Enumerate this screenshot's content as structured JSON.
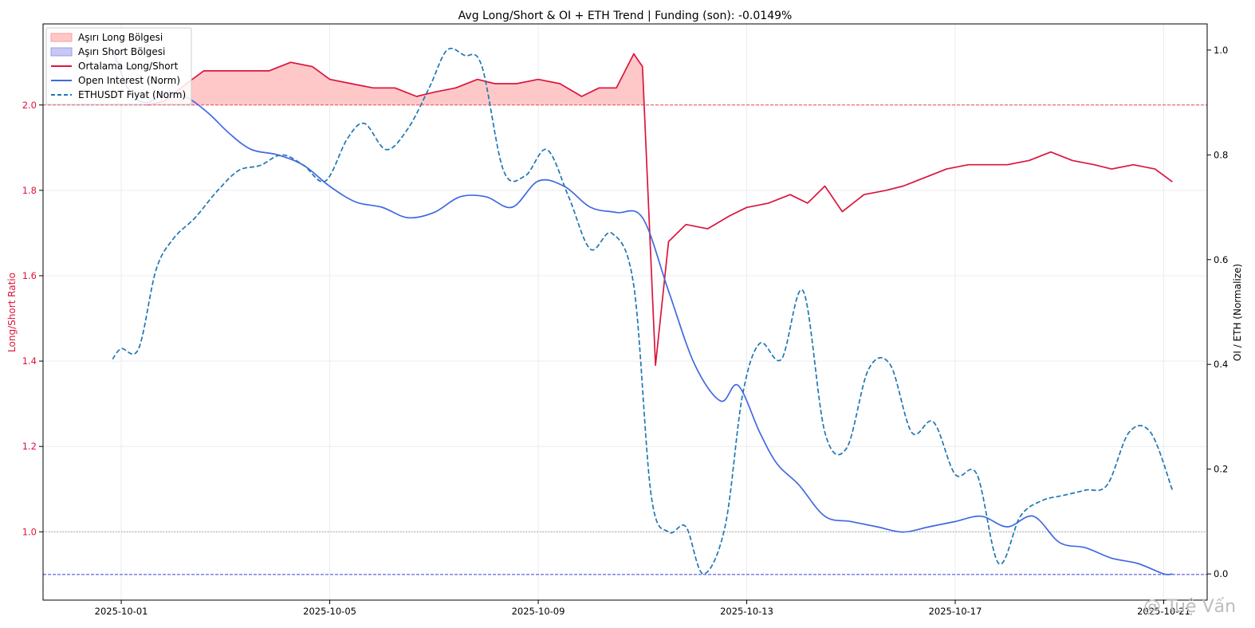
{
  "chart_data": {
    "type": "line",
    "title": "Avg Long/Short & OI + ETH Trend | Funding (son): -0.0149%",
    "ylabel_left": "Long/Short Ratio",
    "ylabel_right": "OI / ETH (Normalize)",
    "xlabel": "",
    "x_start": "2025-09-30T20:00",
    "x_end": "2025-10-21T04:00",
    "xlim": [
      "2025-09-29T12:00",
      "2025-10-21T20:00"
    ],
    "x_ticks": [
      "2025-10-01",
      "2025-10-05",
      "2025-10-09",
      "2025-10-13",
      "2025-10-17",
      "2025-10-21"
    ],
    "ylim_left": [
      0.84,
      2.19
    ],
    "ylim_right": [
      -0.05,
      1.05
    ],
    "y_ticks_left": [
      "1.0",
      "1.2",
      "1.4",
      "1.6",
      "1.8",
      "2.0"
    ],
    "y_ticks_right": [
      "0.0",
      "0.2",
      "0.4",
      "0.6",
      "0.8",
      "1.0"
    ],
    "grid": true,
    "legend_position": "top-left",
    "colors": {
      "long_short": "#dc143c",
      "open_interest": "#4169e1",
      "eth_price": "#1f77b4",
      "extreme_long_fill": "#ff9b9b",
      "extreme_short_fill": "#b0b0f0",
      "left_axis_text": "#dc143c"
    },
    "reference_lines": [
      {
        "y": 2.0,
        "axis": "left",
        "color": "#e64b5a",
        "style": "dashed"
      },
      {
        "y": 0.9,
        "axis": "left",
        "color": "#3c3cdc",
        "style": "dashed"
      },
      {
        "y": 1.0,
        "axis": "left",
        "color": "#999999",
        "style": "dotted"
      }
    ],
    "legend": [
      {
        "label": "Aşırı Long Bölgesi",
        "kind": "patch",
        "color": "#ffc8c8",
        "edge": "#ff9b9b"
      },
      {
        "label": "Aşırı Short Bölgesi",
        "kind": "patch",
        "color": "#c8c8f5",
        "edge": "#9b9be6"
      },
      {
        "label": "Ortalama Long/Short",
        "kind": "solid",
        "color": "#dc143c"
      },
      {
        "label": "Open Interest (Norm)",
        "kind": "solid",
        "color": "#4169e1"
      },
      {
        "label": "ETHUSDT Fiyat (Norm)",
        "kind": "dashed",
        "color": "#1f77b4"
      }
    ],
    "fill_threshold_long": 2.0,
    "series": [
      {
        "name": "Ortalama Long/Short",
        "axis": "left",
        "x": [
          "2025-10-01T12:00",
          "2025-10-01T20:00",
          "2025-10-02T06:00",
          "2025-10-02T14:00",
          "2025-10-03T00:00",
          "2025-10-03T12:00",
          "2025-10-03T20:00",
          "2025-10-04T06:00",
          "2025-10-04T16:00",
          "2025-10-05T00:00",
          "2025-10-05T10:00",
          "2025-10-05T20:00",
          "2025-10-06T06:00",
          "2025-10-06T16:00",
          "2025-10-07T00:00",
          "2025-10-07T10:00",
          "2025-10-07T20:00",
          "2025-10-08T04:00",
          "2025-10-08T14:00",
          "2025-10-09T00:00",
          "2025-10-09T10:00",
          "2025-10-09T20:00",
          "2025-10-10T04:00",
          "2025-10-10T12:00",
          "2025-10-10T20:00",
          "2025-10-11T00:00",
          "2025-10-11T06:00",
          "2025-10-11T12:00",
          "2025-10-11T20:00",
          "2025-10-12T06:00",
          "2025-10-12T16:00",
          "2025-10-13T00:00",
          "2025-10-13T10:00",
          "2025-10-13T20:00",
          "2025-10-14T04:00",
          "2025-10-14T12:00",
          "2025-10-14T20:00",
          "2025-10-15T06:00",
          "2025-10-15T16:00",
          "2025-10-16T00:00",
          "2025-10-16T10:00",
          "2025-10-16T20:00",
          "2025-10-17T06:00",
          "2025-10-17T16:00",
          "2025-10-18T00:00",
          "2025-10-18T10:00",
          "2025-10-18T20:00",
          "2025-10-19T06:00",
          "2025-10-19T16:00",
          "2025-10-20T00:00",
          "2025-10-20T10:00",
          "2025-10-20T20:00",
          "2025-10-21T04:00"
        ],
        "values": [
          2.0,
          2.01,
          2.05,
          2.08,
          2.08,
          2.08,
          2.08,
          2.1,
          2.09,
          2.06,
          2.05,
          2.04,
          2.04,
          2.02,
          2.03,
          2.04,
          2.06,
          2.05,
          2.05,
          2.06,
          2.05,
          2.02,
          2.04,
          2.04,
          2.12,
          2.09,
          1.39,
          1.68,
          1.72,
          1.71,
          1.74,
          1.76,
          1.77,
          1.79,
          1.77,
          1.81,
          1.75,
          1.79,
          1.8,
          1.81,
          1.83,
          1.85,
          1.86,
          1.86,
          1.86,
          1.87,
          1.89,
          1.87,
          1.86,
          1.85,
          1.86,
          1.85,
          1.82
        ]
      },
      {
        "name": "Open Interest (Norm)",
        "axis": "right",
        "x": [
          "2025-09-30T20:00",
          "2025-10-01T04:00",
          "2025-10-01T12:00",
          "2025-10-01T20:00",
          "2025-10-02T06:00",
          "2025-10-02T16:00",
          "2025-10-03T02:00",
          "2025-10-03T12:00",
          "2025-10-04T00:00",
          "2025-10-04T12:00",
          "2025-10-05T00:00",
          "2025-10-05T12:00",
          "2025-10-06T00:00",
          "2025-10-06T12:00",
          "2025-10-07T00:00",
          "2025-10-07T12:00",
          "2025-10-08T00:00",
          "2025-10-08T12:00",
          "2025-10-09T00:00",
          "2025-10-09T12:00",
          "2025-10-10T00:00",
          "2025-10-10T12:00",
          "2025-10-11T00:00",
          "2025-10-11T12:00",
          "2025-10-12T00:00",
          "2025-10-12T12:00",
          "2025-10-12T20:00",
          "2025-10-13T06:00",
          "2025-10-13T14:00",
          "2025-10-14T00:00",
          "2025-10-14T12:00",
          "2025-10-15T00:00",
          "2025-10-15T12:00",
          "2025-10-16T00:00",
          "2025-10-16T12:00",
          "2025-10-17T00:00",
          "2025-10-17T12:00",
          "2025-10-18T00:00",
          "2025-10-18T12:00",
          "2025-10-19T00:00",
          "2025-10-19T12:00",
          "2025-10-20T00:00",
          "2025-10-20T12:00",
          "2025-10-21T00:00",
          "2025-10-21T04:00"
        ],
        "values": [
          1.0,
          0.92,
          0.9,
          0.92,
          0.91,
          0.88,
          0.84,
          0.81,
          0.8,
          0.78,
          0.74,
          0.71,
          0.7,
          0.68,
          0.69,
          0.72,
          0.72,
          0.7,
          0.75,
          0.74,
          0.7,
          0.69,
          0.68,
          0.54,
          0.4,
          0.33,
          0.36,
          0.27,
          0.21,
          0.17,
          0.11,
          0.1,
          0.09,
          0.08,
          0.09,
          0.1,
          0.11,
          0.09,
          0.11,
          0.06,
          0.05,
          0.03,
          0.02,
          0.0,
          0.0
        ]
      },
      {
        "name": "ETHUSDT Fiyat (Norm)",
        "axis": "right",
        "style": "dashed",
        "x": [
          "2025-09-30T20:00",
          "2025-10-01T00:00",
          "2025-10-01T08:00",
          "2025-10-01T16:00",
          "2025-10-02T00:00",
          "2025-10-02T10:00",
          "2025-10-02T20:00",
          "2025-10-03T06:00",
          "2025-10-03T16:00",
          "2025-10-04T02:00",
          "2025-10-04T12:00",
          "2025-10-04T22:00",
          "2025-10-05T08:00",
          "2025-10-05T16:00",
          "2025-10-06T02:00",
          "2025-10-06T12:00",
          "2025-10-06T22:00",
          "2025-10-07T06:00",
          "2025-10-07T14:00",
          "2025-10-07T22:00",
          "2025-10-08T08:00",
          "2025-10-08T18:00",
          "2025-10-09T04:00",
          "2025-10-09T14:00",
          "2025-10-10T00:00",
          "2025-10-10T10:00",
          "2025-10-10T20:00",
          "2025-10-11T04:00",
          "2025-10-11T12:00",
          "2025-10-11T20:00",
          "2025-10-12T04:00",
          "2025-10-12T14:00",
          "2025-10-12T22:00",
          "2025-10-13T06:00",
          "2025-10-13T16:00",
          "2025-10-14T02:00",
          "2025-10-14T12:00",
          "2025-10-14T22:00",
          "2025-10-15T08:00",
          "2025-10-15T18:00",
          "2025-10-16T04:00",
          "2025-10-16T14:00",
          "2025-10-17T00:00",
          "2025-10-17T10:00",
          "2025-10-17T20:00",
          "2025-10-18T06:00",
          "2025-10-18T16:00",
          "2025-10-19T02:00",
          "2025-10-19T12:00",
          "2025-10-19T22:00",
          "2025-10-20T08:00",
          "2025-10-20T18:00",
          "2025-10-21T04:00"
        ],
        "values": [
          0.41,
          0.43,
          0.43,
          0.58,
          0.64,
          0.68,
          0.73,
          0.77,
          0.78,
          0.8,
          0.78,
          0.75,
          0.83,
          0.86,
          0.81,
          0.85,
          0.93,
          1.0,
          0.99,
          0.97,
          0.77,
          0.76,
          0.81,
          0.72,
          0.62,
          0.65,
          0.55,
          0.15,
          0.08,
          0.09,
          0.0,
          0.09,
          0.34,
          0.44,
          0.41,
          0.54,
          0.27,
          0.24,
          0.39,
          0.4,
          0.27,
          0.29,
          0.19,
          0.19,
          0.02,
          0.11,
          0.14,
          0.15,
          0.16,
          0.17,
          0.27,
          0.27,
          0.16
        ]
      }
    ],
    "watermark": "@ Tuệ Vấn"
  }
}
